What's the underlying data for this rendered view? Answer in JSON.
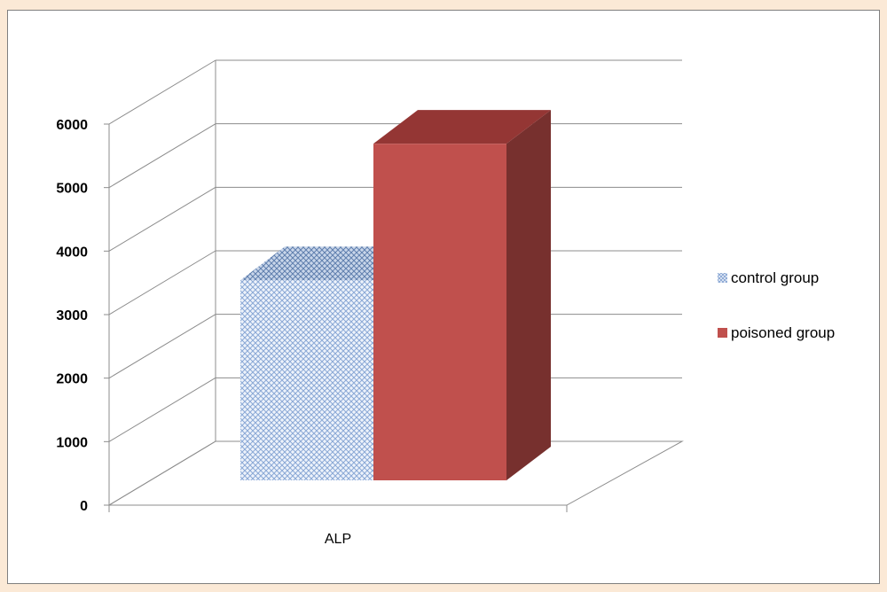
{
  "chart_data": {
    "type": "bar",
    "projection": "3d",
    "categories": [
      "ALP"
    ],
    "series": [
      {
        "name": "control group",
        "values": [
          3150
        ],
        "color": "#b8cce4",
        "pattern": "crosshatch"
      },
      {
        "name": "poisoned group",
        "values": [
          5300
        ],
        "color": "#c0504d"
      }
    ],
    "y_ticks": [
      "0",
      "1000",
      "2000",
      "3000",
      "4000",
      "5000",
      "6000"
    ],
    "ylim": [
      0,
      6000
    ],
    "grid": true,
    "legend_position": "right"
  }
}
